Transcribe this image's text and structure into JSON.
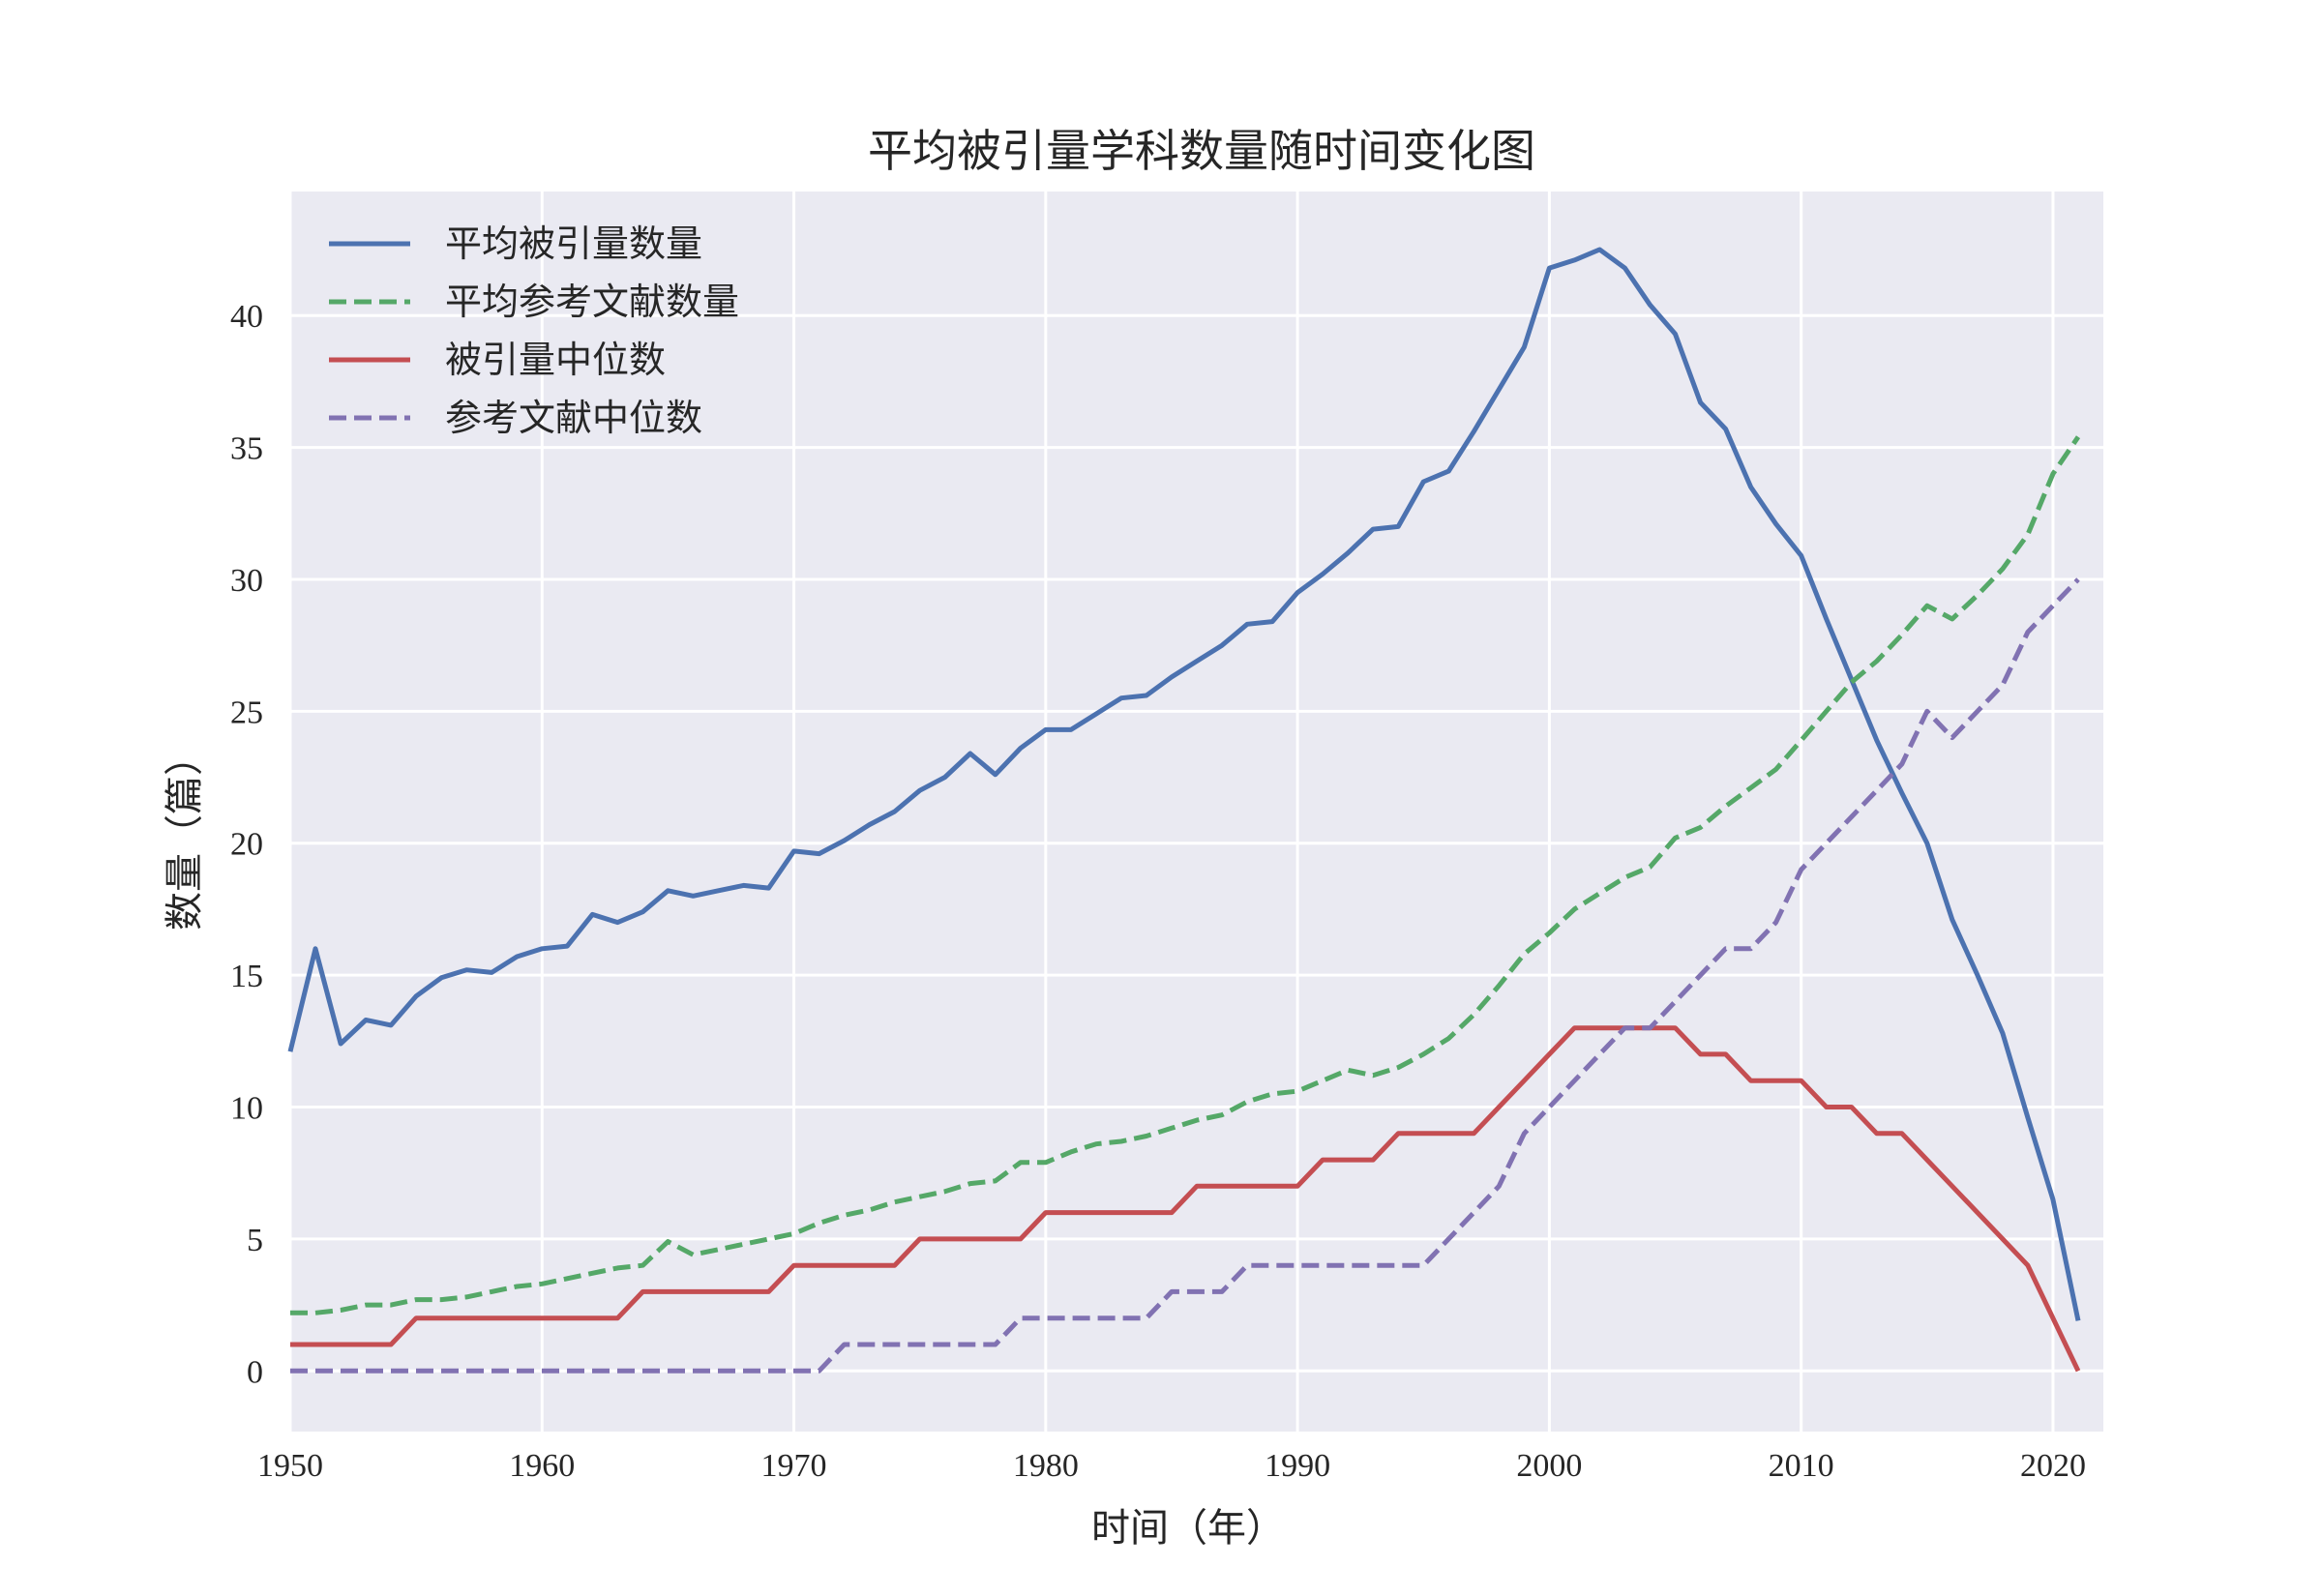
{
  "chart_data": {
    "type": "line",
    "title": "平均被引量学科数量随时间变化图",
    "xlabel": "时间（年）",
    "ylabel": "数量（篇）",
    "xlim": [
      1950,
      2022
    ],
    "ylim": [
      -2.3,
      44.7
    ],
    "xticks": [
      1950,
      1960,
      1970,
      1980,
      1990,
      2000,
      2010,
      2020
    ],
    "yticks": [
      0,
      5,
      10,
      15,
      20,
      25,
      30,
      35,
      40
    ],
    "grid": true,
    "legend_position": "upper-left",
    "background_color": "#EAEAF2",
    "x": [
      1950,
      1951,
      1952,
      1953,
      1954,
      1955,
      1956,
      1957,
      1958,
      1959,
      1960,
      1961,
      1962,
      1963,
      1964,
      1965,
      1966,
      1967,
      1968,
      1969,
      1970,
      1971,
      1972,
      1973,
      1974,
      1975,
      1976,
      1977,
      1978,
      1979,
      1980,
      1981,
      1982,
      1983,
      1984,
      1985,
      1986,
      1987,
      1988,
      1989,
      1990,
      1991,
      1992,
      1993,
      1994,
      1995,
      1996,
      1997,
      1998,
      1999,
      2000,
      2001,
      2002,
      2003,
      2004,
      2005,
      2006,
      2007,
      2008,
      2009,
      2010,
      2011,
      2012,
      2013,
      2014,
      2015,
      2016,
      2017,
      2018,
      2019,
      2020,
      2021
    ],
    "series": [
      {
        "name": "平均被引量数量",
        "color": "#4C72B0",
        "dash": "solid",
        "values": [
          12.1,
          16.0,
          12.4,
          13.3,
          13.1,
          14.2,
          14.9,
          15.2,
          15.1,
          15.7,
          16.0,
          16.1,
          17.3,
          17.0,
          17.4,
          18.2,
          18.0,
          18.2,
          18.4,
          18.3,
          19.7,
          19.6,
          20.1,
          20.7,
          21.2,
          22.0,
          22.5,
          23.4,
          22.6,
          23.6,
          24.3,
          24.3,
          24.9,
          25.5,
          25.6,
          26.3,
          26.9,
          27.5,
          28.3,
          28.4,
          29.5,
          30.2,
          31.0,
          31.9,
          32.0,
          33.7,
          34.1,
          35.6,
          37.2,
          38.8,
          41.8,
          42.1,
          42.5,
          41.8,
          40.4,
          39.3,
          36.7,
          35.7,
          33.5,
          32.1,
          30.9,
          28.5,
          26.2,
          23.9,
          21.9,
          20.0,
          17.1,
          15.0,
          12.8,
          9.6,
          6.5,
          1.9
        ]
      },
      {
        "name": "平均参考文献数量",
        "color": "#55A868",
        "dash": "dashed",
        "values": [
          2.2,
          2.2,
          2.3,
          2.5,
          2.5,
          2.7,
          2.7,
          2.8,
          3.0,
          3.2,
          3.3,
          3.5,
          3.7,
          3.9,
          4.0,
          4.9,
          4.4,
          4.6,
          4.8,
          5.0,
          5.2,
          5.6,
          5.9,
          6.1,
          6.4,
          6.6,
          6.8,
          7.1,
          7.2,
          7.9,
          7.9,
          8.3,
          8.6,
          8.7,
          8.9,
          9.2,
          9.5,
          9.7,
          10.2,
          10.5,
          10.6,
          11.0,
          11.4,
          11.2,
          11.5,
          12.0,
          12.6,
          13.5,
          14.6,
          15.8,
          16.6,
          17.5,
          18.1,
          18.7,
          19.1,
          20.2,
          20.6,
          21.4,
          22.1,
          22.8,
          23.9,
          25.0,
          26.1,
          26.9,
          27.9,
          29.0,
          28.5,
          29.4,
          30.4,
          31.7,
          34.0,
          35.4
        ]
      },
      {
        "name": "被引量中位数",
        "color": "#C44E52",
        "dash": "solid",
        "values": [
          1,
          1,
          1,
          1,
          1,
          2,
          2,
          2,
          2,
          2,
          2,
          2,
          2,
          2,
          3,
          3,
          3,
          3,
          3,
          3,
          4,
          4,
          4,
          4,
          4,
          5,
          5,
          5,
          5,
          5,
          6,
          6,
          6,
          6,
          6,
          6,
          7,
          7,
          7,
          7,
          7,
          8,
          8,
          8,
          9,
          9,
          9,
          9,
          10,
          11,
          12,
          13,
          13,
          13,
          13,
          13,
          12,
          12,
          11,
          11,
          11,
          10,
          10,
          9,
          9,
          8,
          7,
          6,
          5,
          4,
          2,
          0
        ]
      },
      {
        "name": "参考文献中位数",
        "color": "#8172B2",
        "dash": "dashed",
        "values": [
          0,
          0,
          0,
          0,
          0,
          0,
          0,
          0,
          0,
          0,
          0,
          0,
          0,
          0,
          0,
          0,
          0,
          0,
          0,
          0,
          0,
          0,
          1,
          1,
          1,
          1,
          1,
          1,
          1,
          2,
          2,
          2,
          2,
          2,
          2,
          3,
          3,
          3,
          4,
          4,
          4,
          4,
          4,
          4,
          4,
          4,
          5,
          6,
          7,
          9,
          10,
          11,
          12,
          13,
          13,
          14,
          15,
          16,
          16,
          17,
          19,
          20,
          21,
          22,
          23,
          25,
          24,
          25,
          26,
          28,
          29,
          30
        ]
      }
    ]
  }
}
